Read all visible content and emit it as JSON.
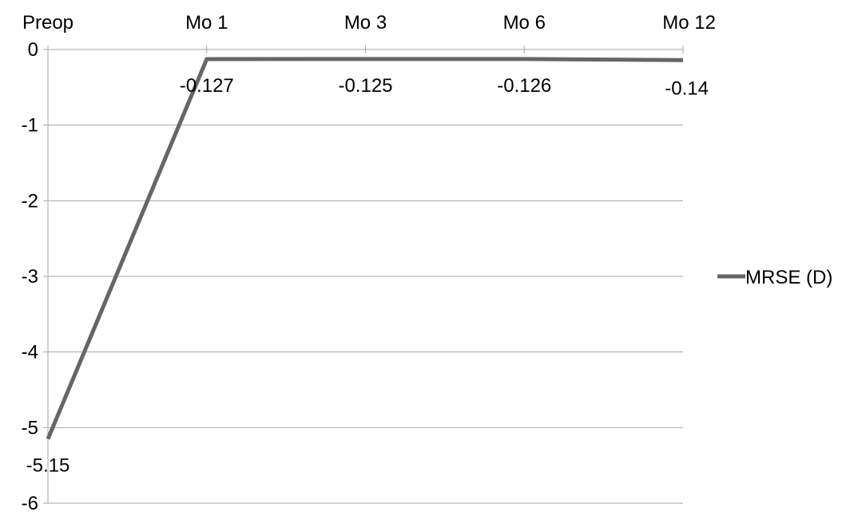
{
  "chart_data": {
    "type": "line",
    "categories": [
      "Preop",
      "Mo 1",
      "Mo 3",
      "Mo 6",
      "Mo 12"
    ],
    "series": [
      {
        "name": "MRSE (D)",
        "values": [
          -5.15,
          -0.127,
          -0.125,
          -0.126,
          -0.14
        ],
        "labels": [
          "-5.15",
          "-0.127",
          "-0.125",
          "-0.126",
          "-0.14"
        ],
        "color": "#666666"
      }
    ],
    "y_ticks": [
      "0",
      "-1",
      "-2",
      "-3",
      "-4",
      "-5",
      "-6"
    ],
    "ylim": [
      -6,
      0
    ],
    "x_axis_position": "top",
    "grid": true,
    "gridline_color": "#a6a6a6",
    "legend_position": "right",
    "title": "",
    "xlabel": "",
    "ylabel": ""
  }
}
